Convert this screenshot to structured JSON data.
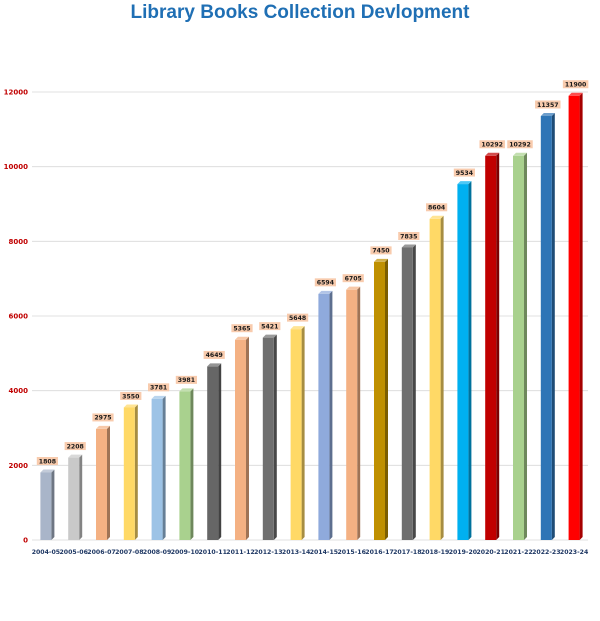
{
  "chart_data": {
    "type": "bar",
    "title": "Library Books Collection Devlopment",
    "xlabel": "",
    "ylabel": "",
    "ylim": [
      0,
      12000
    ],
    "yticks": [
      0,
      2000,
      4000,
      6000,
      8000,
      10000,
      12000
    ],
    "grid": true,
    "legend": "none",
    "categories": [
      "2004-05",
      "2005-06",
      "2006-07",
      "2007-08",
      "2008-09",
      "2009-10",
      "2010-11",
      "2011-12",
      "2012-13",
      "2013-14",
      "2014-15",
      "2015-16",
      "2016-17",
      "2017-18",
      "2018-19",
      "2019-20",
      "2020-21",
      "2021-22",
      "2022-23",
      "2023-24"
    ],
    "values": [
      1808,
      2208,
      2975,
      3550,
      3781,
      3981,
      4649,
      5365,
      5421,
      5648,
      6594,
      6705,
      7450,
      7835,
      8604,
      9534,
      10292,
      10292,
      11357,
      11900
    ],
    "bar_colors": [
      "#a9b5c9",
      "#c9c9c9",
      "#f4b183",
      "#ffd966",
      "#9dc3e6",
      "#a9d18e",
      "#666666",
      "#f4b183",
      "#6f6f6f",
      "#ffd966",
      "#8faadc",
      "#f4b183",
      "#bf9000",
      "#6f6f6f",
      "#ffd966",
      "#00b0f0",
      "#c00000",
      "#a9d18e",
      "#2e75b6",
      "#ff0000"
    ],
    "colors": {
      "title": "#1f6fb4",
      "tick_labels": "#c00000",
      "category_labels": "#1f3864",
      "data_label_bg": "#f8cbad",
      "grid": "#d9d9d9"
    }
  }
}
